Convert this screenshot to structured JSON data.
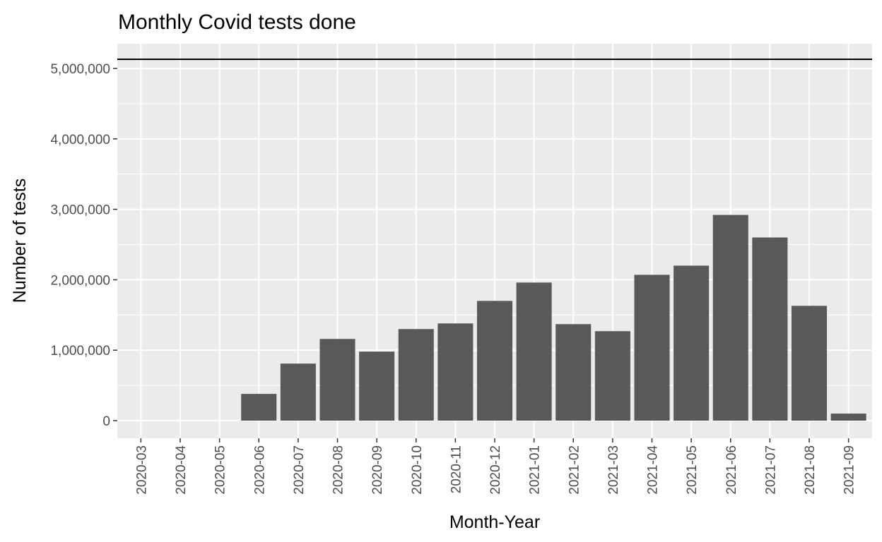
{
  "chart_data": {
    "type": "bar",
    "title": "Monthly Covid tests done",
    "xlabel": "Month-Year",
    "ylabel": "Number of tests",
    "categories": [
      "2020-03",
      "2020-04",
      "2020-05",
      "2020-06",
      "2020-07",
      "2020-08",
      "2020-09",
      "2020-10",
      "2020-11",
      "2020-12",
      "2021-01",
      "2021-02",
      "2021-03",
      "2021-04",
      "2021-05",
      "2021-06",
      "2021-07",
      "2021-08",
      "2021-09"
    ],
    "values": [
      0,
      0,
      0,
      380000,
      810000,
      1160000,
      980000,
      1300000,
      1380000,
      1700000,
      1960000,
      1370000,
      1270000,
      2070000,
      2200000,
      2920000,
      2600000,
      1630000,
      100000
    ],
    "y_ticks": [
      0,
      1000000,
      2000000,
      3000000,
      4000000,
      5000000
    ],
    "y_tick_labels": [
      "0",
      "1,000,000",
      "2,000,000",
      "3,000,000",
      "4,000,000",
      "5,000,000"
    ],
    "ylim": [
      -250000,
      5350000
    ],
    "reference_line": 5130000,
    "grid": true,
    "legend": "none",
    "colors": {
      "panel": "#ebebeb",
      "bar": "#595959",
      "grid": "#ffffff",
      "reference_line": "#000000"
    }
  }
}
